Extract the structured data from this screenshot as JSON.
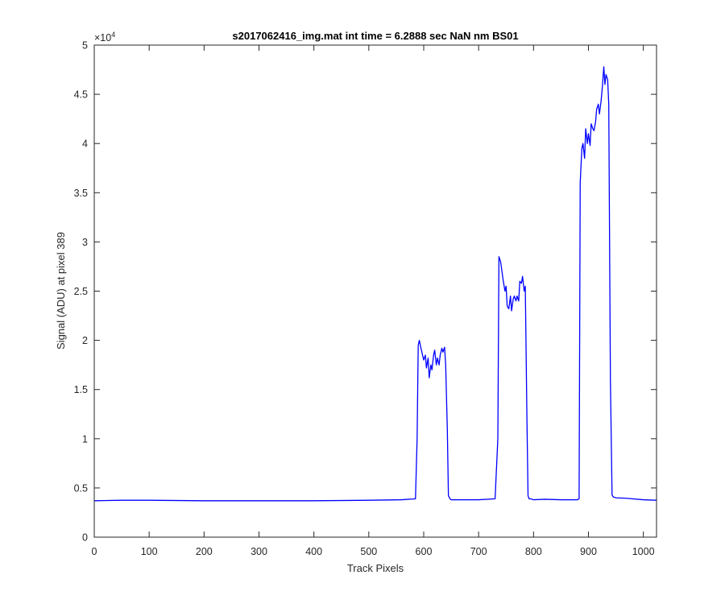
{
  "chart_data": {
    "type": "line",
    "title": "s2017062416_img.mat int time = 6.2888 sec  NaN nm BS01",
    "xlabel": "Track Pixels",
    "ylabel": "Signal (ADU) at pixel 389",
    "xlim": [
      0,
      1024
    ],
    "ylim": [
      0,
      50000
    ],
    "y_exponent_label": "×10",
    "y_exponent_power": "4",
    "xticks": [
      0,
      100,
      200,
      300,
      400,
      500,
      600,
      700,
      800,
      900,
      1000
    ],
    "xtick_labels": [
      "0",
      "100",
      "200",
      "300",
      "400",
      "500",
      "600",
      "700",
      "800",
      "900",
      "1000"
    ],
    "yticks": [
      0,
      5000,
      10000,
      15000,
      20000,
      25000,
      30000,
      35000,
      40000,
      45000,
      50000
    ],
    "ytick_labels": [
      "0",
      "0.5",
      "1",
      "1.5",
      "2",
      "2.5",
      "3",
      "3.5",
      "4",
      "4.5",
      "5"
    ],
    "grid": false,
    "series": [
      {
        "color": "#0000ff",
        "x": [
          0,
          50,
          100,
          200,
          300,
          400,
          500,
          560,
          585,
          588,
          590,
          592,
          595,
          600,
          603,
          605,
          608,
          610,
          613,
          615,
          618,
          620,
          623,
          625,
          628,
          630,
          633,
          635,
          638,
          640,
          643,
          645,
          648,
          650,
          652,
          655,
          660,
          700,
          730,
          735,
          737,
          740,
          745,
          748,
          750,
          752,
          755,
          758,
          760,
          763,
          765,
          768,
          770,
          773,
          775,
          778,
          780,
          783,
          785,
          788,
          790,
          792,
          795,
          797,
          800,
          820,
          850,
          880,
          883,
          885,
          888,
          890,
          893,
          895,
          898,
          900,
          903,
          905,
          908,
          910,
          913,
          915,
          918,
          920,
          923,
          925,
          928,
          930,
          932,
          935,
          937,
          940,
          943,
          945,
          947,
          950,
          970,
          1000,
          1024
        ],
        "y": [
          3700,
          3750,
          3750,
          3700,
          3700,
          3700,
          3750,
          3800,
          3900,
          10000,
          19500,
          20000,
          19200,
          18000,
          18500,
          17200,
          18200,
          16200,
          17500,
          17000,
          18500,
          19000,
          17500,
          18200,
          17500,
          18500,
          19200,
          18800,
          19300,
          17500,
          11000,
          4200,
          3900,
          3800,
          3800,
          3800,
          3800,
          3800,
          3900,
          10000,
          28500,
          28000,
          26000,
          25000,
          25500,
          23500,
          23200,
          24500,
          23000,
          24200,
          24500,
          24000,
          24500,
          24000,
          26000,
          25800,
          26500,
          25000,
          25500,
          12000,
          4200,
          3900,
          3900,
          3850,
          3800,
          3850,
          3800,
          3800,
          3900,
          36000,
          39500,
          40000,
          38500,
          41500,
          40000,
          41000,
          39800,
          42000,
          41500,
          41300,
          42200,
          43500,
          44000,
          43000,
          44300,
          45500,
          47800,
          46000,
          47000,
          46500,
          44000,
          16000,
          4300,
          4100,
          4050,
          4000,
          3950,
          3800,
          3750
        ]
      }
    ]
  }
}
